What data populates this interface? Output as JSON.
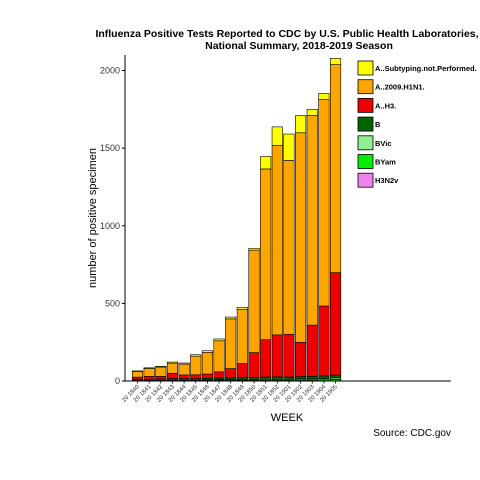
{
  "chart_data": {
    "type": "bar",
    "stacked": true,
    "title": [
      "Influenza Positive Tests Reported to CDC by U.S. Public Health Laboratories,",
      "National Summary, 2018-2019 Season"
    ],
    "xlabel": "WEEK",
    "ylabel": "number of positive specimen",
    "source": "Source: CDC.gov",
    "ylim": [
      0,
      2100
    ],
    "yticks": [
      0,
      500,
      1000,
      1500,
      2000
    ],
    "categories": [
      "20 1840",
      "20 1841",
      "20 1842",
      "20 1843",
      "20 1844",
      "20 1845",
      "20 1846",
      "20 1847",
      "20 1848",
      "20 1849",
      "20 1850",
      "20 1851",
      "20 1852",
      "20 1901",
      "20 1902",
      "20 1903",
      "20 1904",
      "20 1905"
    ],
    "series": [
      {
        "name": "H3N2v",
        "color": "#ee82ee",
        "values": [
          0,
          0,
          0,
          0,
          0,
          0,
          0,
          0,
          0,
          0,
          0,
          0,
          0,
          0,
          0,
          0,
          0,
          0
        ]
      },
      {
        "name": "BYam",
        "color": "#00ee00",
        "values": [
          2,
          2,
          3,
          3,
          3,
          3,
          4,
          4,
          4,
          5,
          5,
          6,
          6,
          6,
          7,
          7,
          8,
          10
        ]
      },
      {
        "name": "BVic",
        "color": "#90ee90",
        "values": [
          2,
          2,
          2,
          3,
          3,
          3,
          3,
          4,
          4,
          5,
          5,
          6,
          6,
          6,
          7,
          7,
          8,
          10
        ]
      },
      {
        "name": "B",
        "color": "#006400",
        "values": [
          8,
          8,
          9,
          10,
          10,
          10,
          11,
          11,
          12,
          12,
          13,
          14,
          15,
          14,
          15,
          16,
          17,
          18
        ]
      },
      {
        "name": "A..H3.",
        "color": "#ee0000",
        "values": [
          13,
          18,
          16,
          34,
          23,
          24,
          27,
          40,
          60,
          90,
          160,
          240,
          270,
          275,
          220,
          330,
          450,
          660
        ]
      },
      {
        "name": "A..2009.H1N1.",
        "color": "#ffa500",
        "values": [
          35,
          50,
          60,
          65,
          70,
          120,
          140,
          200,
          320,
          350,
          660,
          1100,
          1220,
          1120,
          1350,
          1350,
          1330,
          1340
        ]
      },
      {
        "name": "A..Subtyping.not.Performed.",
        "color": "#ffff00",
        "values": [
          5,
          5,
          5,
          7,
          7,
          10,
          10,
          12,
          12,
          13,
          12,
          80,
          120,
          170,
          110,
          40,
          40,
          40
        ]
      }
    ],
    "legend": {
      "position": "right",
      "order": [
        "A..Subtyping.not.Performed.",
        "A..2009.H1N1.",
        "A..H3.",
        "B",
        "BVic",
        "BYam",
        "H3N2v"
      ]
    },
    "grid": false
  }
}
